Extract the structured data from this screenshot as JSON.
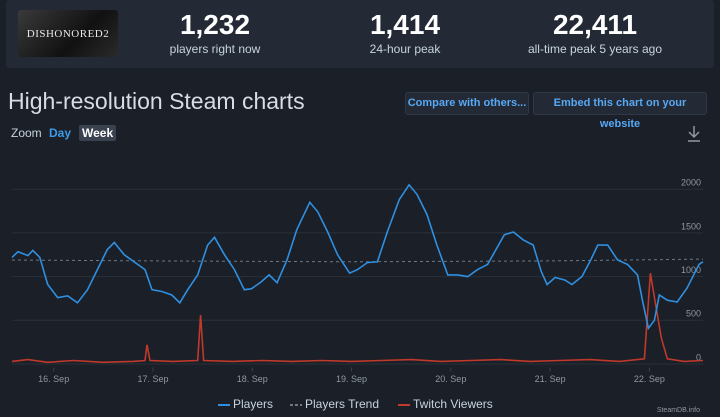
{
  "header": {
    "game_logo": "DISHONORED2",
    "stats": [
      {
        "value": "1,232",
        "label": "players right now"
      },
      {
        "value": "1,414",
        "label": "24-hour peak"
      },
      {
        "value": "22,411",
        "label": "all-time peak 5 years ago"
      }
    ]
  },
  "buttons": [
    "Compare with others...",
    "Embed this chart on your website"
  ],
  "zoom": {
    "label": "Zoom",
    "options": [
      "Day",
      "Week"
    ]
  },
  "watermark": "SteamDB.info",
  "chart_data": {
    "type": "line",
    "title": "High-resolution Steam charts",
    "xlim": [
      15.58,
      22.54
    ],
    "xticks": [
      {
        "value": 16,
        "label": "16. Sep"
      },
      {
        "value": 17,
        "label": "17. Sep"
      },
      {
        "value": 18,
        "label": "18. Sep"
      },
      {
        "value": 19,
        "label": "19. Sep"
      },
      {
        "value": 20,
        "label": "20. Sep"
      },
      {
        "value": 21,
        "label": "21. Sep"
      },
      {
        "value": 22,
        "label": "22. Sep"
      }
    ],
    "ylim": [
      -40,
      2300
    ],
    "yticks": [
      0,
      500,
      1000,
      1500,
      2000
    ],
    "grid": true,
    "series": [
      {
        "name": "Players",
        "color": "#2f8fe0",
        "dashed": false,
        "x": [
          15.58,
          15.64,
          15.74,
          15.79,
          15.86,
          15.94,
          16.04,
          16.14,
          16.24,
          16.34,
          16.44,
          16.54,
          16.61,
          16.71,
          16.81,
          16.92,
          16.99,
          17.09,
          17.19,
          17.27,
          17.35,
          17.45,
          17.55,
          17.62,
          17.72,
          17.82,
          17.92,
          17.99,
          18.09,
          18.17,
          18.25,
          18.35,
          18.45,
          18.58,
          18.66,
          18.76,
          18.86,
          18.98,
          19.06,
          19.16,
          19.26,
          19.36,
          19.48,
          19.58,
          19.66,
          19.76,
          19.86,
          19.97,
          20.07,
          20.17,
          20.27,
          20.37,
          20.47,
          20.54,
          20.63,
          20.73,
          20.83,
          20.91,
          20.97,
          21.05,
          21.15,
          21.22,
          21.32,
          21.4,
          21.48,
          21.58,
          21.68,
          21.78,
          21.88,
          21.93,
          21.99,
          22.05,
          22.1,
          22.18,
          22.28,
          22.38,
          22.5,
          22.54
        ],
        "values": [
          1220,
          1285,
          1240,
          1300,
          1220,
          910,
          760,
          780,
          700,
          850,
          1080,
          1310,
          1390,
          1250,
          1170,
          1080,
          850,
          830,
          790,
          700,
          850,
          1020,
          1360,
          1450,
          1250,
          1080,
          850,
          860,
          940,
          1020,
          930,
          1190,
          1540,
          1850,
          1740,
          1510,
          1250,
          1040,
          1080,
          1160,
          1170,
          1510,
          1880,
          2050,
          1940,
          1710,
          1360,
          1020,
          1020,
          1000,
          1080,
          1140,
          1340,
          1480,
          1510,
          1420,
          1360,
          1060,
          910,
          990,
          960,
          910,
          1000,
          1170,
          1360,
          1360,
          1190,
          1140,
          1020,
          730,
          410,
          500,
          790,
          730,
          710,
          870,
          1140,
          1170
        ]
      },
      {
        "name": "Players Trend",
        "color": "#6d7884",
        "dashed": true,
        "x": [
          15.58,
          17.0,
          19.0,
          21.0,
          22.54
        ],
        "values": [
          1190,
          1180,
          1170,
          1180,
          1200
        ]
      },
      {
        "name": "Twitch Viewers",
        "color": "#c0392b",
        "dashed": false,
        "x": [
          15.58,
          15.74,
          15.94,
          16.2,
          16.5,
          16.8,
          16.92,
          16.94,
          16.97,
          17.2,
          17.45,
          17.48,
          17.51,
          17.8,
          18.1,
          18.4,
          18.7,
          19.0,
          19.3,
          19.6,
          19.9,
          20.2,
          20.5,
          20.8,
          21.1,
          21.4,
          21.7,
          21.95,
          22.01,
          22.06,
          22.12,
          22.18,
          22.35,
          22.54
        ],
        "values": [
          30,
          50,
          20,
          40,
          20,
          30,
          40,
          220,
          40,
          30,
          40,
          560,
          40,
          30,
          40,
          30,
          40,
          30,
          40,
          50,
          30,
          40,
          50,
          30,
          40,
          50,
          30,
          60,
          1040,
          700,
          300,
          60,
          30,
          40
        ]
      }
    ]
  }
}
